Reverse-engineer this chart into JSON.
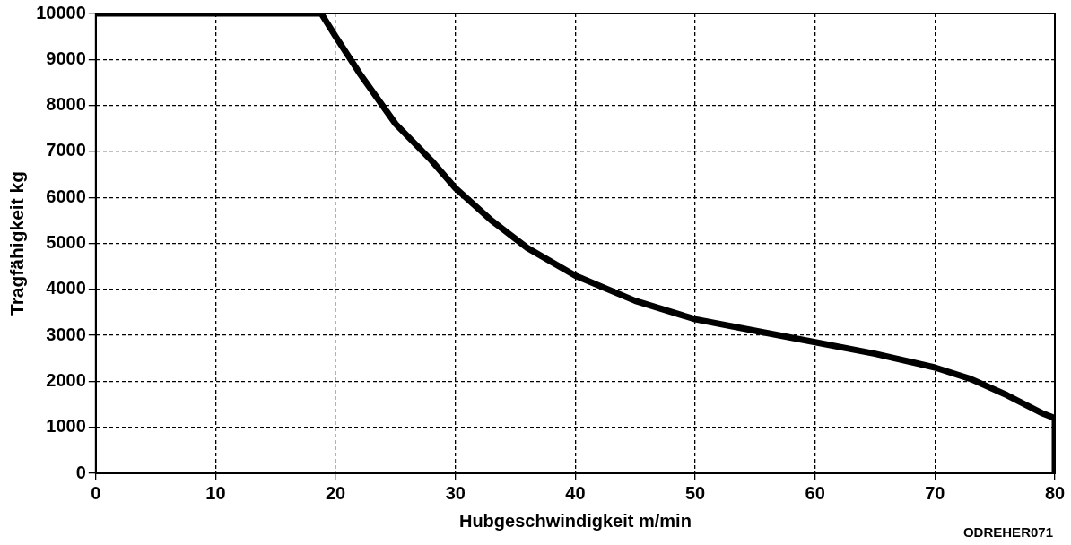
{
  "chart_data": {
    "type": "line",
    "xlabel": "Hubgeschwindigkeit m/min",
    "ylabel": "Tragfähigkeit kg",
    "annotations": [
      "ODREHER071"
    ],
    "series": [
      {
        "color": "#000000",
        "x": [
          0,
          18.8,
          20,
          22,
          25,
          28,
          30,
          33,
          36,
          40,
          45,
          50,
          55,
          60,
          65,
          70,
          73,
          76,
          79,
          80,
          80
        ],
        "values": [
          10000,
          10000,
          9500,
          8700,
          7600,
          6800,
          6200,
          5500,
          4900,
          4300,
          3750,
          3350,
          3100,
          2850,
          2600,
          2300,
          2050,
          1700,
          1300,
          1200,
          0
        ]
      }
    ],
    "xlim": [
      0,
      80
    ],
    "xticks": [
      0,
      10,
      20,
      30,
      40,
      50,
      60,
      70,
      80
    ],
    "ylim": [
      0,
      10000
    ],
    "yticks": [
      0,
      1000,
      2000,
      3000,
      4000,
      5000,
      6000,
      7000,
      8000,
      9000,
      10000
    ],
    "grid": true,
    "legend": false,
    "marker": "none",
    "line_style": "solid"
  }
}
